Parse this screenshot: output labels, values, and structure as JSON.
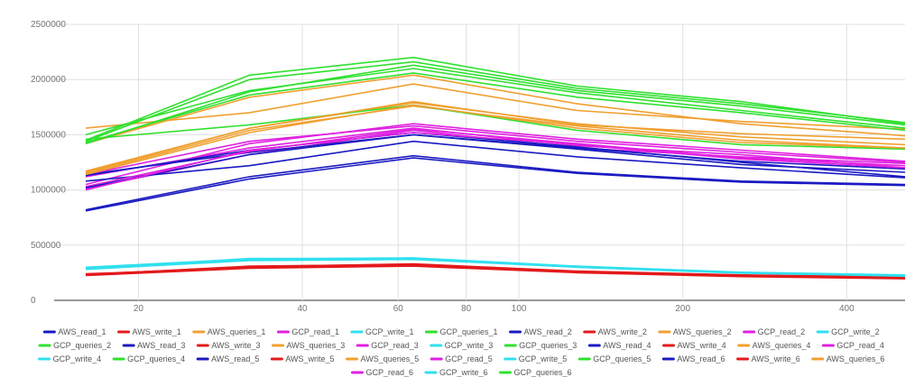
{
  "chart_data": {
    "type": "line",
    "title": "",
    "xlabel": "",
    "ylabel": "",
    "x_scale": "log",
    "xlim": [
      14,
      512
    ],
    "ylim": [
      0,
      2500000
    ],
    "x": [
      16,
      32,
      64,
      128,
      256,
      512
    ],
    "x_ticks": [
      20,
      40,
      60,
      80,
      100,
      200,
      400
    ],
    "x_tick_labels": [
      "20",
      "40",
      "60",
      "80",
      "100",
      "200",
      "400"
    ],
    "y_ticks": [
      0,
      500000,
      1000000,
      1500000,
      2000000,
      2500000
    ],
    "y_tick_labels": [
      "0",
      "500000",
      "1000000",
      "1500000",
      "2000000",
      "2500000"
    ],
    "grid": true,
    "legend_position": "bottom",
    "colors": {
      "read_aws": "#1a1ac2",
      "write_aws": "#e31a1c",
      "queries_aws": "#f0a030",
      "read_gcp": "#e020e0",
      "write_gcp": "#30e0f0",
      "queries_gcp": "#30e030"
    },
    "series": [
      {
        "name": "AWS_read_1",
        "color": "#1a1ac2",
        "values": [
          820000,
          1120000,
          1310000,
          1160000,
          1080000,
          1050000
        ]
      },
      {
        "name": "AWS_write_1",
        "color": "#e31a1c",
        "values": [
          225000,
          290000,
          310000,
          250000,
          215000,
          195000
        ]
      },
      {
        "name": "AWS_queries_1",
        "color": "#f0a030",
        "values": [
          1560000,
          1700000,
          1960000,
          1720000,
          1620000,
          1550000
        ]
      },
      {
        "name": "GCP_read_1",
        "color": "#e020e0",
        "values": [
          1010000,
          1320000,
          1540000,
          1380000,
          1300000,
          1240000
        ]
      },
      {
        "name": "GCP_write_1",
        "color": "#30e0f0",
        "values": [
          280000,
          360000,
          370000,
          300000,
          245000,
          220000
        ]
      },
      {
        "name": "GCP_queries_1",
        "color": "#30e030",
        "values": [
          1440000,
          2000000,
          2160000,
          1920000,
          1780000,
          1610000
        ]
      },
      {
        "name": "AWS_read_2",
        "color": "#1a1ac2",
        "values": [
          810000,
          1100000,
          1290000,
          1150000,
          1070000,
          1040000
        ]
      },
      {
        "name": "AWS_write_2",
        "color": "#e31a1c",
        "values": [
          230000,
          300000,
          320000,
          255000,
          220000,
          200000
        ]
      },
      {
        "name": "AWS_queries_2",
        "color": "#f0a030",
        "values": [
          1420000,
          1840000,
          2040000,
          1780000,
          1600000,
          1490000
        ]
      },
      {
        "name": "GCP_read_2",
        "color": "#e020e0",
        "values": [
          1050000,
          1420000,
          1600000,
          1460000,
          1360000,
          1260000
        ]
      },
      {
        "name": "GCP_write_2",
        "color": "#30e0f0",
        "values": [
          290000,
          370000,
          380000,
          305000,
          250000,
          225000
        ]
      },
      {
        "name": "GCP_queries_2",
        "color": "#30e030",
        "values": [
          1500000,
          1900000,
          2100000,
          1880000,
          1720000,
          1560000
        ]
      },
      {
        "name": "AWS_read_3",
        "color": "#1a1ac2",
        "values": [
          1080000,
          1220000,
          1440000,
          1300000,
          1200000,
          1110000
        ]
      },
      {
        "name": "AWS_write_3",
        "color": "#e31a1c",
        "values": [
          240000,
          295000,
          315000,
          260000,
          225000,
          205000
        ]
      },
      {
        "name": "AWS_queries_3",
        "color": "#f0a030",
        "values": [
          1150000,
          1540000,
          1760000,
          1580000,
          1450000,
          1380000
        ]
      },
      {
        "name": "GCP_read_3",
        "color": "#e020e0",
        "values": [
          1120000,
          1380000,
          1560000,
          1400000,
          1320000,
          1200000
        ]
      },
      {
        "name": "GCP_write_3",
        "color": "#30e0f0",
        "values": [
          300000,
          375000,
          385000,
          310000,
          255000,
          230000
        ]
      },
      {
        "name": "GCP_queries_3",
        "color": "#30e030",
        "values": [
          1430000,
          1860000,
          2060000,
          1840000,
          1700000,
          1540000
        ]
      },
      {
        "name": "AWS_read_4",
        "color": "#1a1ac2",
        "values": [
          1140000,
          1340000,
          1500000,
          1380000,
          1260000,
          1190000
        ]
      },
      {
        "name": "AWS_write_4",
        "color": "#e31a1c",
        "values": [
          235000,
          305000,
          330000,
          265000,
          230000,
          210000
        ]
      },
      {
        "name": "AWS_queries_4",
        "color": "#f0a030",
        "values": [
          1170000,
          1560000,
          1790000,
          1600000,
          1480000,
          1410000
        ]
      },
      {
        "name": "GCP_read_4",
        "color": "#e020e0",
        "values": [
          1140000,
          1440000,
          1580000,
          1440000,
          1340000,
          1250000
        ]
      },
      {
        "name": "GCP_write_4",
        "color": "#30e0f0",
        "values": [
          295000,
          365000,
          375000,
          300000,
          250000,
          218000
        ]
      },
      {
        "name": "GCP_queries_4",
        "color": "#30e030",
        "values": [
          1460000,
          1590000,
          1770000,
          1540000,
          1410000,
          1370000
        ]
      },
      {
        "name": "AWS_read_5",
        "color": "#1a1ac2",
        "values": [
          1130000,
          1360000,
          1520000,
          1390000,
          1250000,
          1120000
        ]
      },
      {
        "name": "AWS_write_5",
        "color": "#e31a1c",
        "values": [
          232000,
          310000,
          325000,
          262000,
          228000,
          202000
        ]
      },
      {
        "name": "AWS_queries_5",
        "color": "#f0a030",
        "values": [
          1160000,
          1560000,
          1800000,
          1590000,
          1510000,
          1460000
        ]
      },
      {
        "name": "GCP_read_5",
        "color": "#e020e0",
        "values": [
          1030000,
          1350000,
          1550000,
          1420000,
          1290000,
          1220000
        ]
      },
      {
        "name": "GCP_write_5",
        "color": "#30e0f0",
        "values": [
          285000,
          380000,
          378000,
          308000,
          252000,
          222000
        ]
      },
      {
        "name": "GCP_queries_5",
        "color": "#30e030",
        "values": [
          1420000,
          1890000,
          2130000,
          1900000,
          1760000,
          1590000
        ]
      },
      {
        "name": "AWS_read_6",
        "color": "#1a1ac2",
        "values": [
          1020000,
          1320000,
          1500000,
          1370000,
          1230000,
          1160000
        ]
      },
      {
        "name": "AWS_write_6",
        "color": "#e31a1c",
        "values": [
          228000,
          300000,
          318000,
          258000,
          222000,
          198000
        ]
      },
      {
        "name": "AWS_queries_6",
        "color": "#f0a030",
        "values": [
          1140000,
          1520000,
          1770000,
          1560000,
          1430000,
          1380000
        ]
      },
      {
        "name": "GCP_read_6",
        "color": "#e020e0",
        "values": [
          1000000,
          1360000,
          1520000,
          1410000,
          1280000,
          1200000
        ]
      },
      {
        "name": "GCP_write_6",
        "color": "#30e0f0",
        "values": [
          292000,
          372000,
          382000,
          304000,
          248000,
          226000
        ]
      },
      {
        "name": "GCP_queries_6",
        "color": "#30e030",
        "values": [
          1450000,
          2040000,
          2200000,
          1940000,
          1800000,
          1600000
        ]
      }
    ]
  }
}
